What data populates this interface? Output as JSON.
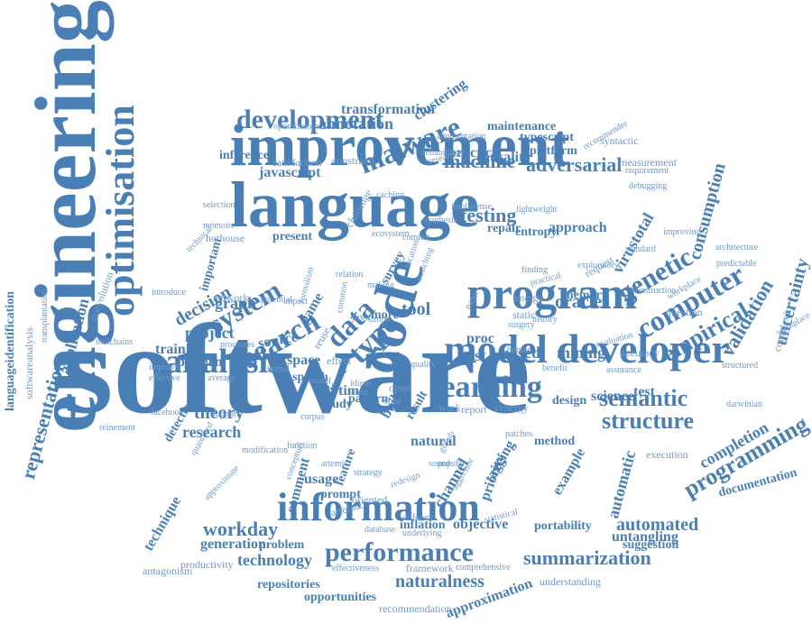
{
  "colors": {
    "primary": "#4a7fb5",
    "light": "#6f9acb",
    "background": "#ffffff"
  },
  "words": [
    "software",
    "engineering",
    "language",
    "improvement",
    "information",
    "optimisation",
    "code",
    "program",
    "developer",
    "model",
    "analysis",
    "learning",
    "performance",
    "search",
    "development",
    "malware",
    "system",
    "data",
    "structure",
    "semantic",
    "genetic",
    "testing",
    "computer",
    "empirical",
    "type",
    "machine",
    "adversarial",
    "summarization",
    "workday",
    "technology",
    "automated",
    "naturalness",
    "programming",
    "validation",
    "uncertainty",
    "oracle",
    "representation",
    "application",
    "languageidentification",
    "softwareanalysis",
    "research",
    "theory",
    "decision",
    "project",
    "training",
    "graph",
    "pattern",
    "pattern",
    "time",
    "study",
    "space",
    "test",
    "based",
    "mining",
    "science",
    "design",
    "annotation",
    "transformation",
    "clustering",
    "maintenance",
    "typescript",
    "platform",
    "causality",
    "practice",
    "javascript",
    "inference",
    "satisfaction",
    "constraint",
    "approach",
    "entropy",
    "repair",
    "consumption",
    "virustotal",
    "completion",
    "documentation",
    "execution",
    "generation",
    "problem",
    "productivity",
    "repositories",
    "opportunities",
    "recommendation",
    "approximation",
    "understanding",
    "suggestion",
    "untangling",
    "portability",
    "objective",
    "inflation",
    "different",
    "database",
    "effectiveness",
    "framework",
    "comprehensive",
    "technique",
    "antagonism",
    "approximate",
    "comment",
    "usage",
    "feature",
    "prompt",
    "artefact",
    "oriented",
    "channel",
    "priority",
    "automatic",
    "example",
    "natural",
    "method",
    "work",
    "report",
    "synergy",
    "speech",
    "effect",
    "issue",
    "build",
    "result",
    "reuse",
    "tool",
    "proc",
    "memory",
    "energy",
    "question",
    "accuracy",
    "complexity",
    "structured",
    "darwinian",
    "facebook",
    "support",
    "detection",
    "reinement",
    "quantified",
    "average",
    "effective",
    "improve",
    "network",
    "important",
    "hothouse",
    "present",
    "formalism",
    "survey",
    "making",
    "simple",
    "commit",
    "request",
    "practical",
    "finding",
    "standard",
    "architecture",
    "predictable",
    "workplace",
    "improving",
    "recommender",
    "requirement",
    "debugging",
    "measurement",
    "syntactic",
    "selection",
    "technical",
    "coevolution",
    "toolchains",
    "processes",
    "source",
    "game",
    "more",
    "java",
    "open",
    "shse",
    "error",
    "idiom",
    "kernel",
    "neural",
    "corpus",
    "static",
    "surgery",
    "human",
    "benefit",
    "assurance",
    "history",
    "evaluation",
    "workplace",
    "augmentation",
    "researcher",
    "challenge",
    "ecosystem",
    "location",
    "switching",
    "tagging",
    "paper",
    "patches",
    "github",
    "function",
    "modification",
    "conceptual",
    "underlying",
    "statistical",
    "strategy",
    "popular",
    "redesign",
    "aggressor",
    "mémoire",
    "introduce",
    "potential",
    "impact",
    "common",
    "reliability",
    "caching",
    "optimization",
    "transplantation",
    "relation",
    "artemis",
    "sound",
    "quality",
    "intellisense",
    "synthesis",
    "lightweight",
    "construction",
    "exploratory",
    "test"
  ]
}
